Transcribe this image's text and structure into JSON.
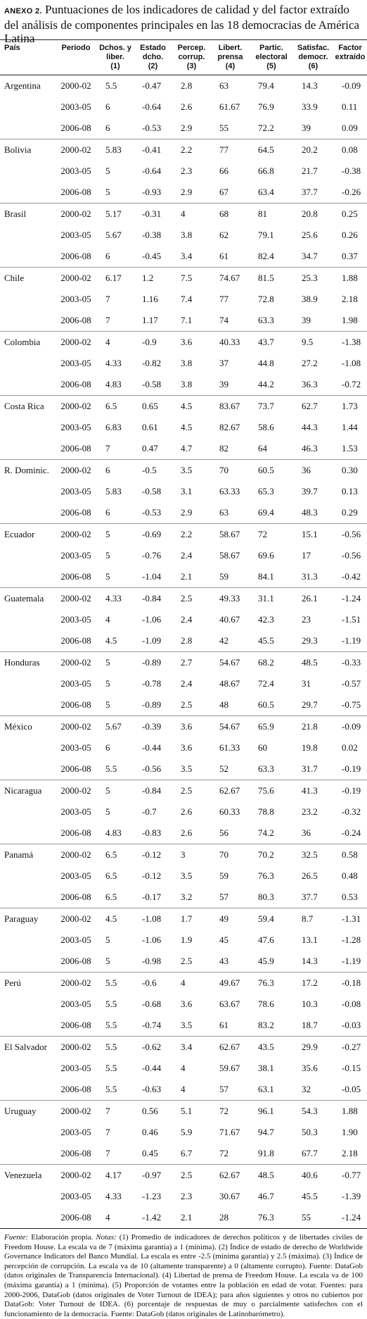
{
  "title": {
    "label": "ANEXO 2.",
    "text": "Puntuaciones de los indicadores de calidad y del factor extraído del análisis de componentes principales en las 18 democracias de América Latina"
  },
  "columns": [
    [
      "País"
    ],
    [
      "Periodo"
    ],
    [
      "Dchos. y",
      "liber.",
      "(1)"
    ],
    [
      "Estado",
      "dcho.",
      "(2)"
    ],
    [
      "Percep.",
      "corrup.",
      "(3)"
    ],
    [
      "Libert.",
      "prensa",
      "(4)"
    ],
    [
      "Partic.",
      "electoral",
      "(5)"
    ],
    [
      "Satisfac.",
      "democr.",
      "(6)"
    ],
    [
      "Factor",
      "extraído"
    ]
  ],
  "groups": [
    {
      "country": "Argentina",
      "rows": [
        [
          "2000-02",
          "5.5",
          "-0.47",
          "2.8",
          "63",
          "79.4",
          "14.3",
          "-0.09"
        ],
        [
          "2003-05",
          "6",
          "-0.64",
          "2.6",
          "61.67",
          "76.9",
          "33.9",
          "0.11"
        ],
        [
          "2006-08",
          "6",
          "-0.53",
          "2.9",
          "55",
          "72.2",
          "39",
          "0.09"
        ]
      ]
    },
    {
      "country": "Bolivia",
      "rows": [
        [
          "2000-02",
          "5.83",
          "-0.41",
          "2.2",
          "77",
          "64.5",
          "20.2",
          "0.08"
        ],
        [
          "2003-05",
          "5",
          "-0.64",
          "2.3",
          "66",
          "66.8",
          "21.7",
          "-0.38"
        ],
        [
          "2006-08",
          "5",
          "-0.93",
          "2.9",
          "67",
          "63.4",
          "37.7",
          "-0.26"
        ]
      ]
    },
    {
      "country": "Brasil",
      "rows": [
        [
          "2000-02",
          "5.17",
          "-0.31",
          "4",
          "68",
          "81",
          "20.8",
          "0.25"
        ],
        [
          "2003-05",
          "5.67",
          "-0.38",
          "3.8",
          "62",
          "79.1",
          "25.6",
          "0.26"
        ],
        [
          "2006-08",
          "6",
          "-0.45",
          "3.4",
          "61",
          "82.4",
          "34.7",
          "0.37"
        ]
      ]
    },
    {
      "country": "Chile",
      "rows": [
        [
          "2000-02",
          "6.17",
          "1.2",
          "7.5",
          "74.67",
          "81.5",
          "25.3",
          "1.88"
        ],
        [
          "2003-05",
          "7",
          "1.16",
          "7.4",
          "77",
          "72.8",
          "38.9",
          "2.18"
        ],
        [
          "2006-08",
          "7",
          "1.17",
          "7.1",
          "74",
          "63.3",
          "39",
          "1.98"
        ]
      ]
    },
    {
      "country": "Colombia",
      "rows": [
        [
          "2000-02",
          "4",
          "-0.9",
          "3.6",
          "40.33",
          "43.7",
          "9.5",
          "-1.38"
        ],
        [
          "2003-05",
          "4.33",
          "-0.82",
          "3.8",
          "37",
          "44.8",
          "27.2",
          "-1.08"
        ],
        [
          "2006-08",
          "4.83",
          "-0.58",
          "3.8",
          "39",
          "44.2",
          "36.3",
          "-0.72"
        ]
      ]
    },
    {
      "country": "Costa Rica",
      "rows": [
        [
          "2000-02",
          "6.5",
          "0.65",
          "4.5",
          "83.67",
          "73.7",
          "62.7",
          "1.73"
        ],
        [
          "2003-05",
          "6.83",
          "0.61",
          "4.5",
          "82.67",
          "58.6",
          "44.3",
          "1.44"
        ],
        [
          "2006-08",
          "7",
          "0.47",
          "4.7",
          "82",
          "64",
          "46.3",
          "1.53"
        ]
      ]
    },
    {
      "country": "R. Dominic.",
      "rows": [
        [
          "2000-02",
          "6",
          "-0.5",
          "3.5",
          "70",
          "60.5",
          "36",
          "0.30"
        ],
        [
          "2003-05",
          "5.83",
          "-0.58",
          "3.1",
          "63.33",
          "65.3",
          "39.7",
          "0.13"
        ],
        [
          "2006-08",
          "6",
          "-0.53",
          "2.9",
          "63",
          "69.4",
          "48.3",
          "0.29"
        ]
      ]
    },
    {
      "country": "Ecuador",
      "rows": [
        [
          "2000-02",
          "5",
          "-0.69",
          "2.2",
          "58.67",
          "72",
          "15.1",
          "-0.56"
        ],
        [
          "2003-05",
          "5",
          "-0.76",
          "2.4",
          "58.67",
          "69.6",
          "17",
          "-0.56"
        ],
        [
          "2006-08",
          "5",
          "-1.04",
          "2.1",
          "59",
          "84.1",
          "31.3",
          "-0.42"
        ]
      ]
    },
    {
      "country": "Guatemala",
      "rows": [
        [
          "2000-02",
          "4.33",
          "-0.84",
          "2.5",
          "49.33",
          "31.1",
          "26.1",
          "-1.24"
        ],
        [
          "2003-05",
          "4",
          "-1.06",
          "2.4",
          "40.67",
          "42.3",
          "23",
          "-1.51"
        ],
        [
          "2006-08",
          "4.5",
          "-1.09",
          "2.8",
          "42",
          "45.5",
          "29.3",
          "-1.19"
        ]
      ]
    },
    {
      "country": "Honduras",
      "rows": [
        [
          "2000-02",
          "5",
          "-0.89",
          "2.7",
          "54.67",
          "68.2",
          "48.5",
          "-0.33"
        ],
        [
          "2003-05",
          "5",
          "-0.78",
          "2.4",
          "48.67",
          "72.4",
          "31",
          "-0.57"
        ],
        [
          "2006-08",
          "5",
          "-0.89",
          "2.5",
          "48",
          "60.5",
          "29.7",
          "-0.75"
        ]
      ]
    },
    {
      "country": "México",
      "rows": [
        [
          "2000-02",
          "5.67",
          "-0.39",
          "3.6",
          "54.67",
          "65.9",
          "21.8",
          "-0.09"
        ],
        [
          "2003-05",
          "6",
          "-0.44",
          "3.6",
          "61.33",
          "60",
          "19.8",
          "0.02"
        ],
        [
          "2006-08",
          "5.5",
          "-0.56",
          "3.5",
          "52",
          "63.3",
          "31.7",
          "-0.19"
        ]
      ]
    },
    {
      "country": "Nicaragua",
      "rows": [
        [
          "2000-02",
          "5",
          "-0.84",
          "2.5",
          "62.67",
          "75.6",
          "41.3",
          "-0.19"
        ],
        [
          "2003-05",
          "5",
          "-0.7",
          "2.6",
          "60.33",
          "78.8",
          "23.2",
          "-0.32"
        ],
        [
          "2006-08",
          "4.83",
          "-0.83",
          "2.6",
          "56",
          "74.2",
          "36",
          "-0.24"
        ]
      ]
    },
    {
      "country": "Panamá",
      "rows": [
        [
          "2000-02",
          "6.5",
          "-0.12",
          "3",
          "70",
          "70.2",
          "32.5",
          "0.58"
        ],
        [
          "2003-05",
          "6.5",
          "-0.12",
          "3.5",
          "59",
          "76.3",
          "26.5",
          "0.48"
        ],
        [
          "2006-08",
          "6.5",
          "-0.17",
          "3.2",
          "57",
          "80.3",
          "37.7",
          "0.53"
        ]
      ]
    },
    {
      "country": "Paraguay",
      "rows": [
        [
          "2000-02",
          "4.5",
          "-1.08",
          "1.7",
          "49",
          "59.4",
          "8.7",
          "-1.31"
        ],
        [
          "2003-05",
          "5",
          "-1.06",
          "1.9",
          "45",
          "47.6",
          "13.1",
          "-1.28"
        ],
        [
          "2006-08",
          "5",
          "-0.98",
          "2.5",
          "43",
          "45.9",
          "14.3",
          "-1.19"
        ]
      ]
    },
    {
      "country": "Perú",
      "rows": [
        [
          "2000-02",
          "5.5",
          "-0.6",
          "4",
          "49.67",
          "76.3",
          "17.2",
          "-0.18"
        ],
        [
          "2003-05",
          "5.5",
          "-0.68",
          "3.6",
          "63.67",
          "78.6",
          "10.3",
          "-0.08"
        ],
        [
          "2006-08",
          "5.5",
          "-0.74",
          "3.5",
          "61",
          "83.2",
          "18.7",
          "-0.03"
        ]
      ]
    },
    {
      "country": "El Salvador",
      "rows": [
        [
          "2000-02",
          "5.5",
          "-0.62",
          "3.4",
          "62.67",
          "43.5",
          "29.9",
          "-0.27"
        ],
        [
          "2003-05",
          "5.5",
          "-0.44",
          "4",
          "59.67",
          "38.1",
          "35.6",
          "-0.15"
        ],
        [
          "2006-08",
          "5.5",
          "-0.63",
          "4",
          "57",
          "63.1",
          "32",
          "-0.05"
        ]
      ]
    },
    {
      "country": "Uruguay",
      "rows": [
        [
          "2000-02",
          "7",
          "0.56",
          "5.1",
          "72",
          "96.1",
          "54.3",
          "1.88"
        ],
        [
          "2003-05",
          "7",
          "0.46",
          "5.9",
          "71.67",
          "94.7",
          "50.3",
          "1.90"
        ],
        [
          "2006-08",
          "7",
          "0.45",
          "6.7",
          "72",
          "91.8",
          "67.7",
          "2.18"
        ]
      ]
    },
    {
      "country": "Venezuela",
      "rows": [
        [
          "2000-02",
          "4.17",
          "-0.97",
          "2.5",
          "62.67",
          "48.5",
          "40.6",
          "-0.77"
        ],
        [
          "2003-05",
          "4.33",
          "-1.23",
          "2.3",
          "30.67",
          "46.7",
          "45.5",
          "-1.39"
        ],
        [
          "2006-08",
          "4",
          "-1.42",
          "2.1",
          "28",
          "76.3",
          "55",
          "-1.24"
        ]
      ]
    }
  ],
  "footnote": {
    "source_label": "Fuente:",
    "source": "Elaboración propia.",
    "notes_label": "Notas:",
    "notes": "(1) Promedio de indicadores de derechos políticos y de libertades civiles de Freedom House. La escala va de 7 (máxima garantía) a 1 (mínima). (2) Índice de estado de derecho de Worldwide Governance Indicators del Banco Mundial. La escala es entre -2.5 (mínima garantía) y 2.5 (máxima). (3) Índice de percepción de corrupción. La escala va de 10 (altamente transparente) a 0 (altamente corrupto). Fuente: DataGob (datos originales de Transparencia Internacional). (4) Libertad de prensa de Freedom House. La escala va de 100 (máxima garantía) a 1 (mínima). (5) Proporción de votantes entre la población en edad de votar. Fuentes: para 2000-2006, DataGob (datos originales de Voter Turnout de IDEA); para años siguientes y otros no cubiertos por DataGob: Voter Turnout de IDEA. (6) porcentaje de respuestas de muy o parcialmente satisfechos con el funcionamiento de la democracia. Fuente: DataGob (datos originales de Latinobarómetro)."
  }
}
